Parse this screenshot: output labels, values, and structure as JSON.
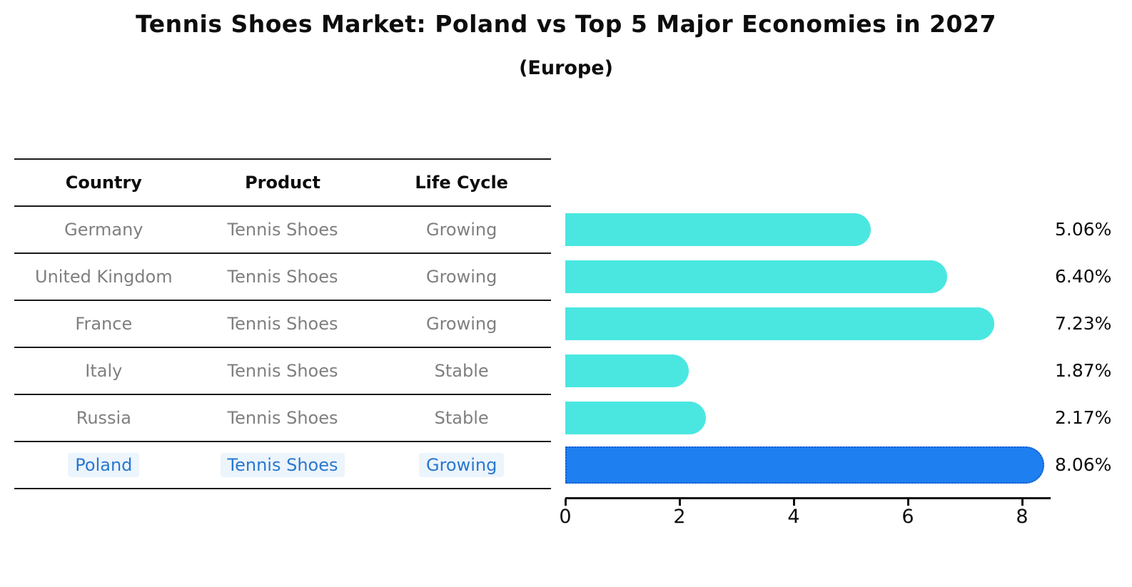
{
  "page": {
    "background": "#ffffff"
  },
  "chart_data": {
    "type": "bar",
    "orientation": "horizontal",
    "title": "Tennis Shoes Market: Poland vs Top 5 Major Economies in 2027",
    "subtitle": "(Europe)",
    "categories": [
      "Germany",
      "United Kingdom",
      "France",
      "Italy",
      "Russia",
      "Poland"
    ],
    "values": [
      5.06,
      6.4,
      7.23,
      1.87,
      2.17,
      8.06
    ],
    "value_labels": [
      "5.06%",
      "6.40%",
      "7.23%",
      "1.87%",
      "2.17%",
      "8.06%"
    ],
    "highlight_index": 5,
    "xticks": [
      0,
      2,
      4,
      6,
      8
    ],
    "xlim": [
      0,
      8.5
    ],
    "xlabel": "",
    "ylabel": "",
    "grid": false,
    "legend": "none",
    "bar_color": "#4AE7E1",
    "highlight_bar_color": "#1E80F0",
    "highlight_border_color": "#1659CE"
  },
  "table": {
    "headers": [
      "Country",
      "Product",
      "Life Cycle"
    ],
    "rows": [
      {
        "country": "Germany",
        "product": "Tennis Shoes",
        "life_cycle": "Growing",
        "highlighted": false
      },
      {
        "country": "United Kingdom",
        "product": "Tennis Shoes",
        "life_cycle": "Growing",
        "highlighted": false
      },
      {
        "country": "France",
        "product": "Tennis Shoes",
        "life_cycle": "Growing",
        "highlighted": false
      },
      {
        "country": "Italy",
        "product": "Tennis Shoes",
        "life_cycle": "Stable",
        "highlighted": false
      },
      {
        "country": "Russia",
        "product": "Tennis Shoes",
        "life_cycle": "Stable",
        "highlighted": false
      },
      {
        "country": "Poland",
        "product": "Tennis Shoes",
        "life_cycle": "Growing",
        "highlighted": true
      }
    ],
    "header_color": "#0d0d0d",
    "text_color": "#7f7f7f",
    "highlight_text_color": "#2878CE"
  }
}
